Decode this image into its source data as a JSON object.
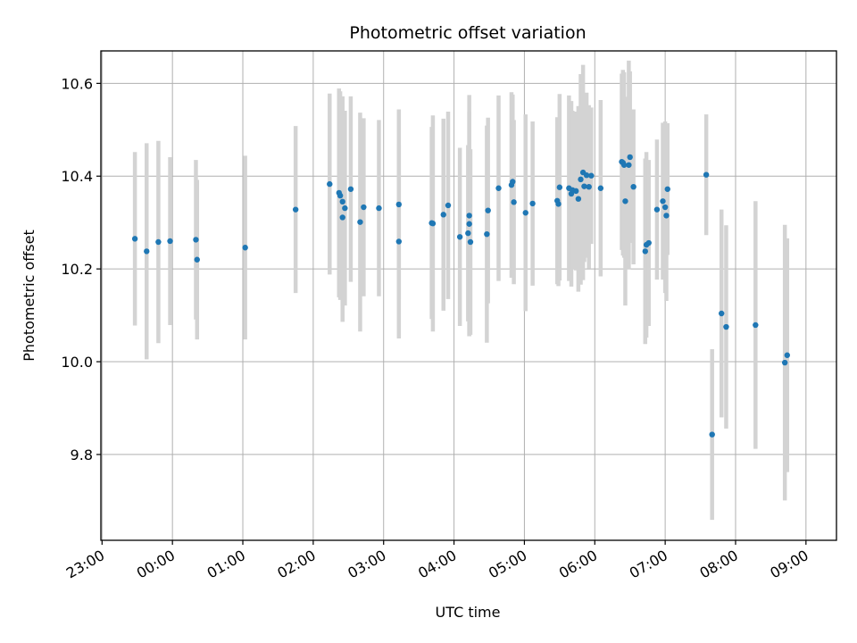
{
  "chart_data": {
    "type": "scatter",
    "title": "Photometric offset variation",
    "xlabel": "UTC time",
    "ylabel": "Photometric offset",
    "grid": true,
    "x_unit": "UTC time (HH:MM)",
    "xlim": [
      "22:59",
      "09:26"
    ],
    "ylim": [
      9.615,
      10.67
    ],
    "x_ticks": [
      "23:00",
      "00:00",
      "01:00",
      "02:00",
      "03:00",
      "04:00",
      "05:00",
      "06:00",
      "07:00",
      "08:00",
      "09:00"
    ],
    "y_ticks": [
      9.8,
      10.0,
      10.2,
      10.4,
      10.6
    ],
    "y_tick_labels": [
      "9.8",
      "10.0",
      "10.2",
      "10.4",
      "10.6"
    ],
    "colors": {
      "points": "#1f77b4",
      "errorbars": "#d3d3d3",
      "grid": "#b0b0b0"
    },
    "series": [
      {
        "x": [
          "23:28",
          "23:38",
          "23:48",
          "23:58",
          "00:20",
          "00:21",
          "01:02",
          "01:45",
          "02:14",
          "02:22",
          "02:23",
          "02:25",
          "02:25",
          "02:27",
          "02:32",
          "02:40",
          "02:43",
          "02:56",
          "03:13",
          "03:13",
          "03:41",
          "03:42",
          "03:51",
          "03:55",
          "04:05",
          "04:12",
          "04:13",
          "04:13",
          "04:14",
          "04:28",
          "04:29",
          "04:38",
          "04:49",
          "04:50",
          "04:51",
          "05:01",
          "05:07",
          "05:28",
          "05:29",
          "05:30",
          "05:38",
          "05:40",
          "05:41",
          "05:44",
          "05:46",
          "05:48",
          "05:50",
          "05:51",
          "05:53",
          "05:55",
          "05:57",
          "06:05",
          "06:23",
          "06:24",
          "06:25",
          "06:26",
          "06:29",
          "06:30",
          "06:33",
          "06:43",
          "06:44",
          "06:46",
          "06:53",
          "06:58",
          "07:00",
          "07:01",
          "07:02",
          "07:35",
          "07:40",
          "07:48",
          "07:52",
          "08:17",
          "08:42",
          "08:44"
        ],
        "y": [
          10.265,
          10.238,
          10.258,
          10.26,
          10.263,
          10.22,
          10.246,
          10.328,
          10.383,
          10.364,
          10.358,
          10.311,
          10.345,
          10.331,
          10.372,
          10.301,
          10.333,
          10.331,
          10.339,
          10.259,
          10.299,
          10.298,
          10.317,
          10.337,
          10.269,
          10.277,
          10.297,
          10.315,
          10.258,
          10.275,
          10.326,
          10.374,
          10.381,
          10.388,
          10.344,
          10.321,
          10.341,
          10.347,
          10.34,
          10.376,
          10.374,
          10.362,
          10.37,
          10.368,
          10.351,
          10.393,
          10.408,
          10.378,
          10.402,
          10.377,
          10.401,
          10.374,
          10.431,
          10.429,
          10.424,
          10.346,
          10.424,
          10.441,
          10.377,
          10.238,
          10.252,
          10.256,
          10.328,
          10.346,
          10.333,
          10.315,
          10.372,
          10.403,
          9.843,
          10.104,
          10.075,
          10.079,
          9.998,
          10.014
        ],
        "yerr": [
          0.187,
          0.233,
          0.218,
          0.181,
          0.172,
          0.172,
          0.198,
          0.18,
          0.195,
          0.225,
          0.225,
          0.225,
          0.227,
          0.21,
          0.2,
          0.236,
          0.192,
          0.19,
          0.205,
          0.209,
          0.207,
          0.233,
          0.207,
          0.202,
          0.192,
          0.19,
          0.242,
          0.26,
          0.2,
          0.234,
          0.2,
          0.2,
          0.2,
          0.188,
          0.177,
          0.212,
          0.177,
          0.18,
          0.177,
          0.201,
          0.2,
          0.2,
          0.171,
          0.171,
          0.2,
          0.227,
          0.232,
          0.163,
          0.178,
          0.176,
          0.147,
          0.19,
          0.19,
          0.2,
          0.2,
          0.225,
          0.225,
          0.185,
          0.167,
          0.2,
          0.2,
          0.179,
          0.151,
          0.169,
          0.185,
          0.184,
          0.142,
          0.13,
          0.184,
          0.224,
          0.219,
          0.267,
          0.297,
          0.252
        ]
      }
    ]
  }
}
